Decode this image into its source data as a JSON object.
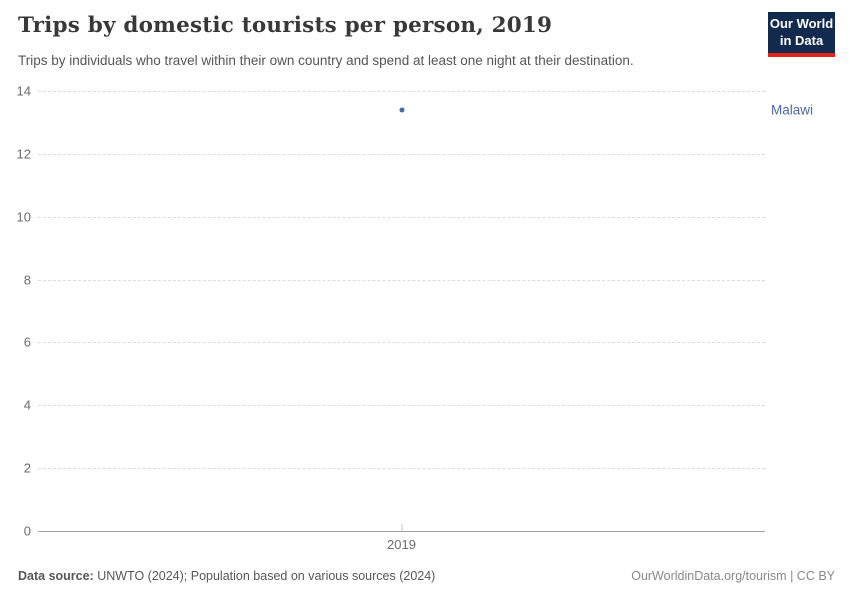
{
  "header": {
    "title": "Trips by domestic tourists per person, 2019",
    "subtitle": "Trips by individuals who travel within their own country and spend at least one night at their destination.",
    "logo": {
      "line1": "Our World",
      "line2": "in Data"
    }
  },
  "chart_data": {
    "type": "scatter",
    "title": "Trips by domestic tourists per person, 2019",
    "x": [
      2019
    ],
    "series": [
      {
        "name": "Malawi",
        "x": 2019,
        "y": 13.4
      }
    ],
    "xlabel": "",
    "ylabel": "",
    "x_tick_labels": [
      "2019"
    ],
    "y_ticks": [
      0,
      2,
      4,
      6,
      8,
      10,
      12,
      14
    ],
    "ylim": [
      0,
      14
    ],
    "grid": true,
    "gridline_style": "dashed",
    "legend_position": "right-of-point",
    "point_color": "#4C6A9C",
    "label_color": "#4C6A9C"
  },
  "footer": {
    "source_label": "Data source:",
    "source_text": " UNWTO (2024); Population based on various sources (2024)",
    "license_text": "OurWorldinData.org/tourism | CC BY"
  },
  "colors": {
    "accent_blue": "#4C6A9C",
    "logo_navy": "#122a4e",
    "logo_red": "#e2231a",
    "title_text": "#383838",
    "axis_text": "#6b6b6b",
    "gridline": "#dcdcdc",
    "axis_line": "#a3a3a3"
  }
}
